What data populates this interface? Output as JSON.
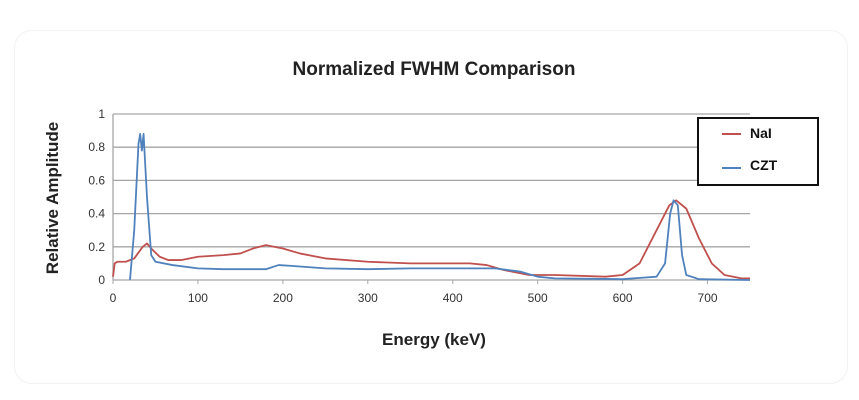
{
  "chart_data": {
    "type": "line",
    "title": "Normalized FWHM Comparison",
    "xlabel": "Energy (keV)",
    "ylabel": "Relative Amplitude",
    "xlim": [
      0,
      750
    ],
    "ylim": [
      0,
      1
    ],
    "xticks": [
      "0",
      "100",
      "200",
      "300",
      "400",
      "500",
      "600",
      "700"
    ],
    "yticks": [
      "0",
      "0.2",
      "0.4",
      "0.6",
      "0.8",
      "1"
    ],
    "grid": true,
    "legend": "top-right",
    "series": [
      {
        "name": "NaI",
        "color": "#c0504d",
        "points": [
          [
            0,
            0.02
          ],
          [
            2,
            0.1
          ],
          [
            5,
            0.11
          ],
          [
            15,
            0.11
          ],
          [
            25,
            0.13
          ],
          [
            35,
            0.2
          ],
          [
            40,
            0.22
          ],
          [
            45,
            0.19
          ],
          [
            55,
            0.14
          ],
          [
            65,
            0.12
          ],
          [
            80,
            0.12
          ],
          [
            100,
            0.14
          ],
          [
            130,
            0.15
          ],
          [
            150,
            0.16
          ],
          [
            165,
            0.19
          ],
          [
            180,
            0.21
          ],
          [
            200,
            0.19
          ],
          [
            220,
            0.16
          ],
          [
            250,
            0.13
          ],
          [
            300,
            0.11
          ],
          [
            350,
            0.1
          ],
          [
            400,
            0.1
          ],
          [
            420,
            0.1
          ],
          [
            440,
            0.09
          ],
          [
            460,
            0.06
          ],
          [
            490,
            0.03
          ],
          [
            520,
            0.03
          ],
          [
            580,
            0.02
          ],
          [
            600,
            0.03
          ],
          [
            620,
            0.1
          ],
          [
            640,
            0.3
          ],
          [
            655,
            0.45
          ],
          [
            663,
            0.48
          ],
          [
            675,
            0.43
          ],
          [
            690,
            0.25
          ],
          [
            705,
            0.1
          ],
          [
            720,
            0.03
          ],
          [
            740,
            0.01
          ],
          [
            750,
            0.01
          ]
        ]
      },
      {
        "name": "CZT",
        "color": "#4f81bd",
        "points": [
          [
            20,
            0
          ],
          [
            25,
            0.3
          ],
          [
            30,
            0.82
          ],
          [
            32,
            0.88
          ],
          [
            34,
            0.78
          ],
          [
            36,
            0.88
          ],
          [
            40,
            0.5
          ],
          [
            45,
            0.15
          ],
          [
            50,
            0.11
          ],
          [
            70,
            0.09
          ],
          [
            100,
            0.07
          ],
          [
            130,
            0.065
          ],
          [
            180,
            0.065
          ],
          [
            195,
            0.09
          ],
          [
            210,
            0.085
          ],
          [
            250,
            0.07
          ],
          [
            300,
            0.065
          ],
          [
            350,
            0.07
          ],
          [
            400,
            0.07
          ],
          [
            450,
            0.07
          ],
          [
            480,
            0.05
          ],
          [
            500,
            0.02
          ],
          [
            520,
            0.01
          ],
          [
            600,
            0.005
          ],
          [
            640,
            0.02
          ],
          [
            650,
            0.1
          ],
          [
            656,
            0.4
          ],
          [
            660,
            0.48
          ],
          [
            665,
            0.45
          ],
          [
            670,
            0.15
          ],
          [
            675,
            0.03
          ],
          [
            690,
            0.005
          ],
          [
            750,
            0
          ]
        ]
      }
    ]
  }
}
